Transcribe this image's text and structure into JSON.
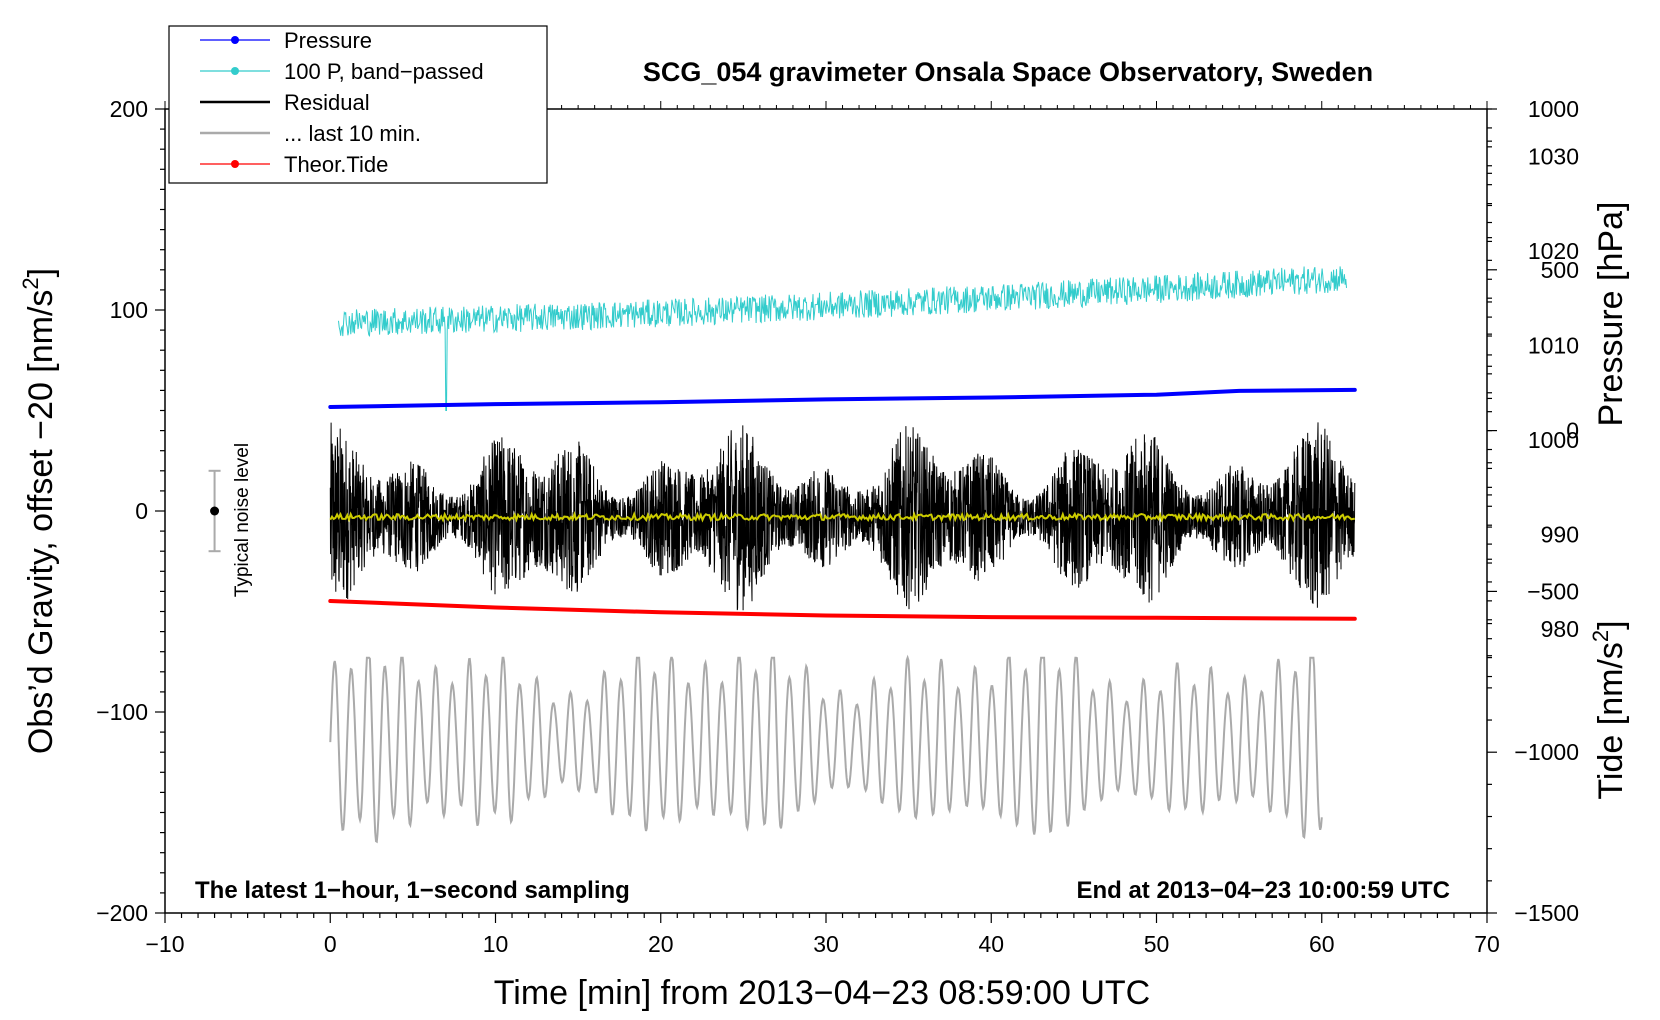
{
  "chart_data": {
    "type": "line",
    "title": "SCG_054 gravimeter Onsala Space Observatory, Sweden",
    "xlabel": "Time [min] from 2013−04−23 08:59:00 UTC",
    "ylabel_left": "Obs’d Gravity, offset −20 [nm/s",
    "ylabel_left_sup": "2",
    "ylabel_left_end": "]",
    "ylabel_right_pressure": "Pressure [hPa]",
    "ylabel_right_tide": "Tide [nm/s",
    "ylabel_right_tide_sup": "2",
    "ylabel_right_tide_end": "]",
    "xlim": [
      -10,
      70
    ],
    "ylim": [
      -200,
      200
    ],
    "x_ticks": [
      -10,
      0,
      10,
      20,
      30,
      40,
      50,
      60,
      70
    ],
    "x_tick_labels": [
      "−10",
      "0",
      "10",
      "20",
      "30",
      "40",
      "50",
      "60",
      "70"
    ],
    "y_ticks": [
      -200,
      -100,
      0,
      100,
      200
    ],
    "y_tick_labels": [
      "−200",
      "−100",
      "0",
      "100",
      "200"
    ],
    "pressure_axis": {
      "ticks": [
        980,
        990,
        1000,
        1010,
        1020,
        1030
      ],
      "tick_labels": [
        "980",
        "990",
        "1000",
        "1010",
        "1020",
        "1030"
      ],
      "range": [
        950,
        1035
      ]
    },
    "tide_axis": {
      "ticks": [
        -1500,
        -1000,
        -500,
        0,
        500,
        1000
      ],
      "tick_labels": [
        "−1500",
        "−1000",
        "−500",
        "0",
        "500",
        "1000"
      ],
      "range": [
        -1500,
        1000
      ]
    },
    "legend": {
      "position": "top-left",
      "entries": [
        {
          "label": "Pressure",
          "color": "#0000ff",
          "marker": true
        },
        {
          "label": "100 P, band−passed",
          "color": "#33cccc",
          "marker": true
        },
        {
          "label": "Residual",
          "color": "#000000",
          "marker": false
        },
        {
          "label": "... last 10 min.",
          "color": "#aaaaaa",
          "marker": false
        },
        {
          "label": "Theor.Tide",
          "color": "#ff0000",
          "marker": true
        }
      ]
    },
    "annotations": {
      "bottom_left": "The latest 1−hour, 1−second sampling",
      "bottom_right": "End at 2013−04−23 10:00:59 UTC",
      "noise_label": "Typical noise level",
      "noise_center": 0,
      "noise_range": [
        -20,
        20
      ],
      "noise_x": -7
    },
    "series": [
      {
        "name": "Pressure",
        "color": "#0000ff",
        "axis": "pressure",
        "x": [
          0,
          10,
          20,
          30,
          40,
          50,
          55,
          62
        ],
        "values": [
          1003.5,
          1003.8,
          1004.0,
          1004.3,
          1004.5,
          1004.8,
          1005.2,
          1005.3
        ]
      },
      {
        "name": "100 P, band−passed",
        "color": "#33cccc",
        "axis": "left",
        "x_range": [
          0.5,
          61.5
        ],
        "baseline_start": 94,
        "baseline_end": 116,
        "amplitude": 7,
        "spike": {
          "x": 7,
          "value": 50
        }
      },
      {
        "name": "Residual",
        "color": "#000000",
        "axis": "left",
        "x_range": [
          0,
          62
        ],
        "baseline": -3,
        "amplitude_range": [
          10,
          48
        ],
        "min": -70,
        "max": 50
      },
      {
        "name": "Residual smoothed",
        "color": "#cccc00",
        "axis": "left",
        "x": [
          0,
          62
        ],
        "values": [
          -3,
          -3
        ]
      },
      {
        "name": "... last 10 min.",
        "color": "#aaaaaa",
        "axis": "left",
        "x_range": [
          0,
          60
        ],
        "center": -115,
        "amplitude_range": [
          25,
          55
        ],
        "min": -173,
        "max": -73
      },
      {
        "name": "Theor.Tide",
        "color": "#ff0000",
        "axis": "tide",
        "x": [
          0,
          10,
          20,
          30,
          40,
          50,
          62
        ],
        "values": [
          -530,
          -550,
          -565,
          -575,
          -580,
          -582,
          -585
        ]
      }
    ]
  }
}
